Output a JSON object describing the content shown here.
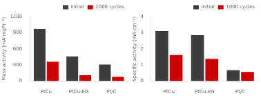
{
  "chart_data": [
    {
      "type": "bar",
      "categories": [
        "PtCu",
        "PtCu-EG",
        "Pt/C"
      ],
      "series": [
        {
          "name": "initial",
          "color": "#3d3d3d",
          "values": [
            970,
            460,
            310
          ]
        },
        {
          "name": "1000 cycles",
          "color": "#cc0000",
          "values": [
            360,
            110,
            80
          ]
        }
      ],
      "ylabel": "Mass activity (mA·mgPt⁻¹)",
      "ylim": [
        0,
        1200
      ],
      "yticks": [
        0,
        300,
        600,
        900,
        1200
      ],
      "legend": "upper right",
      "grid": false
    },
    {
      "type": "bar",
      "categories": [
        "PtCu",
        "PtCu-EG",
        "Pt/C"
      ],
      "series": [
        {
          "name": "initial",
          "color": "#3d3d3d",
          "values": [
            3.1,
            2.85,
            0.68
          ]
        },
        {
          "name": "1000 cycles",
          "color": "#cc0000",
          "values": [
            1.62,
            1.38,
            0.57
          ]
        }
      ],
      "ylabel": "Specific activity (mA·cm⁻²)",
      "ylim": [
        0,
        4
      ],
      "yticks": [
        0,
        1,
        2,
        3,
        4
      ],
      "legend": "upper right",
      "grid": false
    }
  ]
}
